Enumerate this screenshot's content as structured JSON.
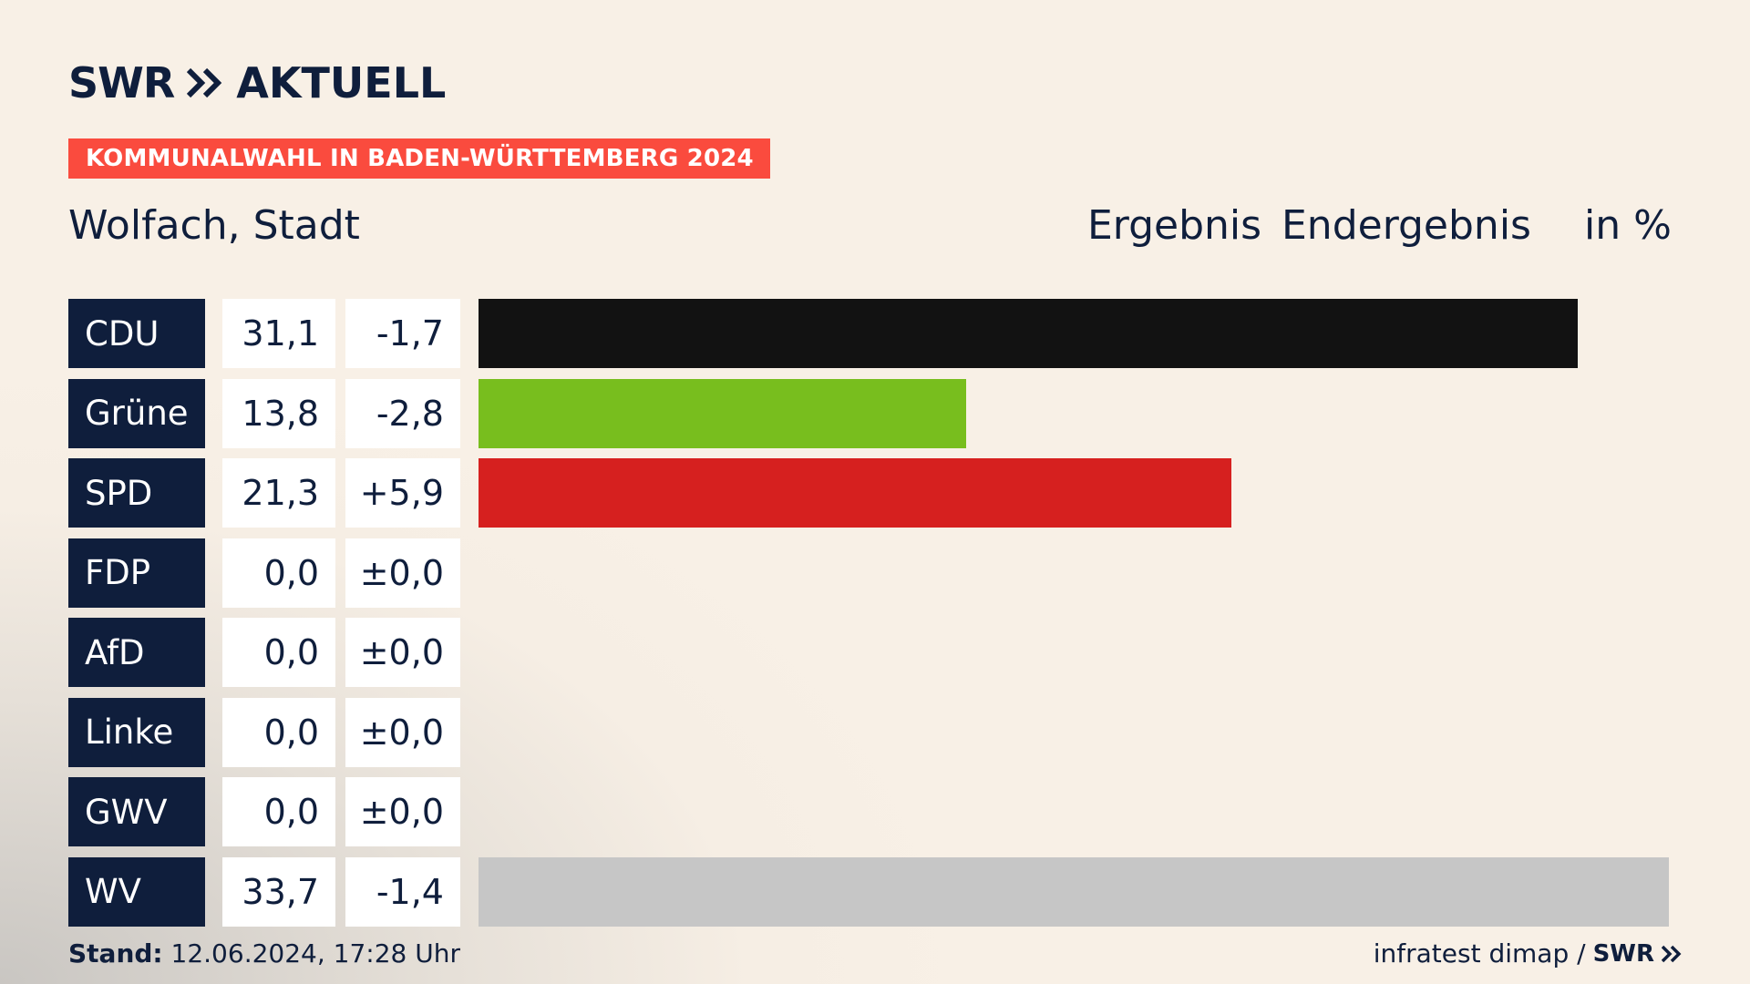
{
  "logo": {
    "brand": "SWR",
    "product": "AKTUELL"
  },
  "banner": "KOMMUNALWAHL IN BADEN-WÜRTTEMBERG 2024",
  "place": "Wolfach, Stadt",
  "headers": {
    "result": "Ergebnis",
    "status": "Endergebnis",
    "unit": "in %"
  },
  "colors": {
    "CDU": "#121212",
    "Grüne": "#78be1e",
    "SPD": "#d6201f",
    "FDP": "#ffe000",
    "AfD": "#009ee0",
    "Linke": "#be3075",
    "GWV": "#c6c6c6",
    "WV": "#c6c6c6"
  },
  "chart_data": {
    "type": "bar",
    "title": "Kommunalwahl in Baden-Württemberg 2024 – Wolfach, Stadt",
    "unit": "%",
    "xlim": [
      0,
      34
    ],
    "categories": [
      "CDU",
      "Grüne",
      "SPD",
      "FDP",
      "AfD",
      "Linke",
      "GWV",
      "WV"
    ],
    "values": [
      31.1,
      13.8,
      21.3,
      0.0,
      0.0,
      0.0,
      0.0,
      33.7
    ],
    "value_labels": [
      "31,1",
      "13,8",
      "21,3",
      "0,0",
      "0,0",
      "0,0",
      "0,0",
      "33,7"
    ],
    "diff_labels": [
      "-1,7",
      "-2,8",
      "+5,9",
      "±0,0",
      "±0,0",
      "±0,0",
      "±0,0",
      "-1,4"
    ]
  },
  "footer": {
    "stand_label": "Stand:",
    "stand_value": "12.06.2024, 17:28 Uhr",
    "source": "infratest dimap /",
    "source_brand": "SWR"
  }
}
